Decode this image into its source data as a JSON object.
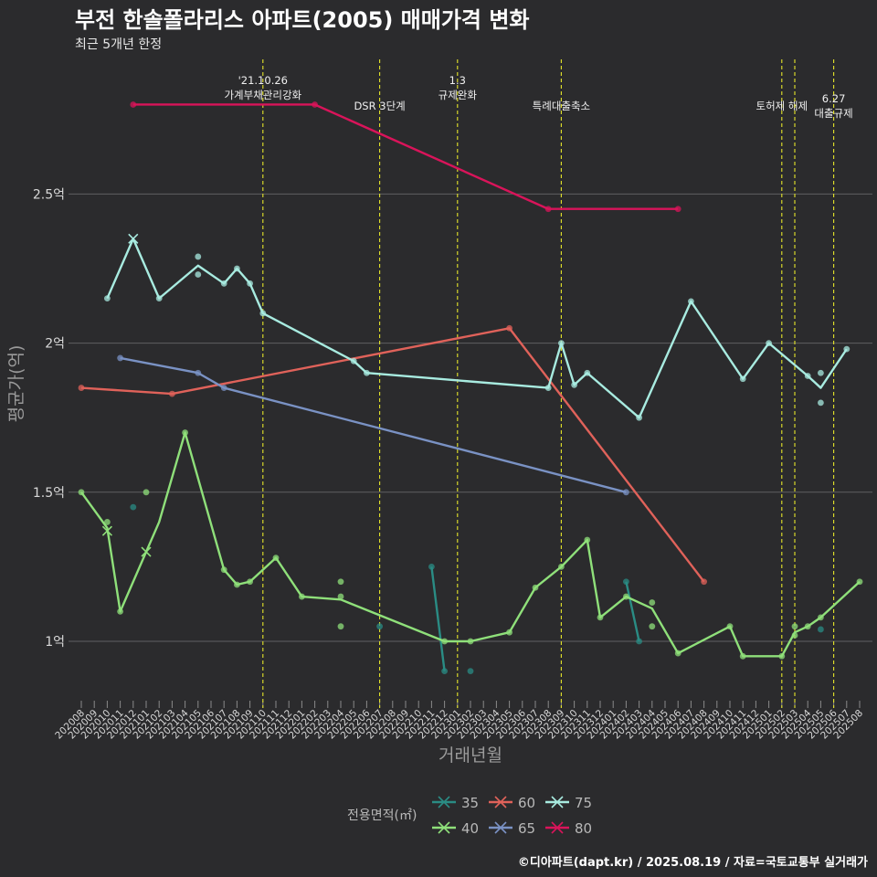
{
  "title": "부전 한솔폴라리스 아파트(2005) 매매가격 변화",
  "subtitle": "최근 5개년 한정",
  "caption": "©디아파트(dapt.kr) / 2025.08.19 / 자료=국토교통부 실거래가",
  "chart_data": {
    "type": "line",
    "xlabel": "거래년월",
    "ylabel": "평균가(억)",
    "legend_title": "전용면적(㎡)",
    "legend_position": "bottom",
    "grid": true,
    "ylim": [
      0.8,
      2.95
    ],
    "y_ticks": [
      1,
      1.5,
      2,
      2.5
    ],
    "y_tick_labels": [
      "1억",
      "1.5억",
      "2억",
      "2.5억"
    ],
    "x_categories": [
      "202008",
      "202009",
      "202010",
      "202011",
      "202012",
      "202101",
      "202102",
      "202103",
      "202104",
      "202105",
      "202106",
      "202107",
      "202108",
      "202109",
      "202110",
      "202111",
      "202112",
      "202201",
      "202202",
      "202203",
      "202204",
      "202205",
      "202206",
      "202207",
      "202208",
      "202209",
      "202210",
      "202211",
      "202212",
      "202301",
      "202302",
      "202303",
      "202304",
      "202305",
      "202306",
      "202307",
      "202308",
      "202309",
      "202310",
      "202311",
      "202312",
      "202401",
      "202402",
      "202403",
      "202404",
      "202405",
      "202406",
      "202407",
      "202408",
      "202409",
      "202410",
      "202411",
      "202412",
      "202501",
      "202502",
      "202503",
      "202504",
      "202505",
      "202506",
      "202507",
      "202508"
    ],
    "events": [
      {
        "x": "202110",
        "label": "'21.10.26\n가계부채관리강화",
        "label_row": 0
      },
      {
        "x": "202207",
        "label": "DSR 3단계",
        "label_row": 1
      },
      {
        "x": "202301",
        "label": "1.3\n규제완화",
        "label_row": 0
      },
      {
        "x": "202309",
        "label": "특례대출축소",
        "label_row": 1
      },
      {
        "x": "202502",
        "label": "토허제 해제",
        "label_row": 1
      },
      {
        "x": "202503",
        "label": "",
        "label_row": 1
      },
      {
        "x": "202506",
        "label": "6.27\n대출규제",
        "label_row": 2
      }
    ],
    "series": [
      {
        "name": "35",
        "color": "#2a8c84",
        "line": [
          [
            "202211",
            1.25
          ],
          [
            "202212",
            0.9
          ],
          null,
          [
            "202402",
            1.2
          ],
          [
            "202403",
            1.0
          ]
        ],
        "points": [
          [
            "202012",
            1.45
          ],
          [
            "202207",
            1.05
          ],
          [
            "202211",
            1.25
          ],
          [
            "202212",
            0.9
          ],
          [
            "202302",
            0.9
          ],
          [
            "202402",
            1.2
          ],
          [
            "202403",
            1.0
          ],
          [
            "202505",
            1.04
          ]
        ],
        "crosses": []
      },
      {
        "name": "40",
        "color": "#8fe07a",
        "line": [
          [
            "202008",
            1.5
          ],
          [
            "202010",
            1.38
          ],
          [
            "202011",
            1.1
          ],
          [
            "202102",
            1.4
          ],
          [
            "202104",
            1.7
          ],
          [
            "202107",
            1.24
          ],
          [
            "202108",
            1.19
          ],
          [
            "202109",
            1.2
          ],
          [
            "202111",
            1.28
          ],
          [
            "202201",
            1.15
          ],
          [
            "202204",
            1.14
          ],
          [
            "202212",
            1.0
          ],
          [
            "202302",
            1.0
          ],
          [
            "202305",
            1.03
          ],
          [
            "202307",
            1.18
          ],
          [
            "202309",
            1.25
          ],
          [
            "202311",
            1.34
          ],
          [
            "202312",
            1.08
          ],
          [
            "202402",
            1.15
          ],
          [
            "202404",
            1.11
          ],
          [
            "202406",
            0.96
          ],
          [
            "202410",
            1.05
          ],
          [
            "202411",
            0.95
          ],
          [
            "202502",
            0.95
          ],
          [
            "202503",
            1.03
          ],
          [
            "202504",
            1.05
          ],
          [
            "202505",
            1.08
          ],
          [
            "202508",
            1.2
          ]
        ],
        "points": [
          [
            "202008",
            1.5
          ],
          [
            "202010",
            1.4
          ],
          [
            "202011",
            1.1
          ],
          [
            "202101",
            1.5
          ],
          [
            "202104",
            1.7
          ],
          [
            "202107",
            1.24
          ],
          [
            "202108",
            1.19
          ],
          [
            "202109",
            1.2
          ],
          [
            "202111",
            1.28
          ],
          [
            "202201",
            1.15
          ],
          [
            "202204",
            1.2
          ],
          [
            "202204",
            1.15
          ],
          [
            "202204",
            1.05
          ],
          [
            "202212",
            1.0
          ],
          [
            "202302",
            1.0
          ],
          [
            "202305",
            1.03
          ],
          [
            "202307",
            1.18
          ],
          [
            "202309",
            1.25
          ],
          [
            "202311",
            1.34
          ],
          [
            "202312",
            1.08
          ],
          [
            "202402",
            1.15
          ],
          [
            "202404",
            1.05
          ],
          [
            "202404",
            1.13
          ],
          [
            "202406",
            0.96
          ],
          [
            "202410",
            1.05
          ],
          [
            "202411",
            0.95
          ],
          [
            "202502",
            0.95
          ],
          [
            "202503",
            1.02
          ],
          [
            "202503",
            1.05
          ],
          [
            "202504",
            1.05
          ],
          [
            "202505",
            1.08
          ],
          [
            "202508",
            1.2
          ]
        ],
        "crosses": [
          [
            "202010",
            1.37
          ],
          [
            "202101",
            1.3
          ]
        ]
      },
      {
        "name": "60",
        "color": "#e0625a",
        "line": [
          [
            "202008",
            1.85
          ],
          [
            "202103",
            1.83
          ],
          [
            "202305",
            2.05
          ],
          [
            "202408",
            1.2
          ]
        ],
        "points": [
          [
            "202008",
            1.85
          ],
          [
            "202103",
            1.83
          ],
          [
            "202305",
            2.05
          ],
          [
            "202408",
            1.2
          ]
        ],
        "crosses": []
      },
      {
        "name": "65",
        "color": "#7a92c4",
        "line": [
          [
            "202011",
            1.95
          ],
          [
            "202105",
            1.9
          ],
          [
            "202107",
            1.85
          ],
          [
            "202402",
            1.5
          ]
        ],
        "points": [
          [
            "202011",
            1.95
          ],
          [
            "202105",
            1.9
          ],
          [
            "202107",
            1.85
          ],
          [
            "202402",
            1.5
          ]
        ],
        "crosses": []
      },
      {
        "name": "75",
        "color": "#a8ebe0",
        "line": [
          [
            "202010",
            2.15
          ],
          [
            "202012",
            2.35
          ],
          [
            "202102",
            2.15
          ],
          [
            "202105",
            2.26
          ],
          [
            "202107",
            2.2
          ],
          [
            "202108",
            2.25
          ],
          [
            "202109",
            2.2
          ],
          [
            "202110",
            2.1
          ],
          [
            "202205",
            1.94
          ],
          [
            "202206",
            1.9
          ],
          [
            "202308",
            1.85
          ],
          [
            "202309",
            2.0
          ],
          [
            "202310",
            1.86
          ],
          [
            "202311",
            1.9
          ],
          [
            "202403",
            1.75
          ],
          [
            "202407",
            2.14
          ],
          [
            "202411",
            1.88
          ],
          [
            "202501",
            2.0
          ],
          [
            "202504",
            1.89
          ],
          [
            "202505",
            1.85
          ],
          [
            "202507",
            1.98
          ]
        ],
        "points": [
          [
            "202010",
            2.15
          ],
          [
            "202102",
            2.15
          ],
          [
            "202105",
            2.23
          ],
          [
            "202105",
            2.29
          ],
          [
            "202107",
            2.2
          ],
          [
            "202108",
            2.25
          ],
          [
            "202109",
            2.2
          ],
          [
            "202110",
            2.1
          ],
          [
            "202205",
            1.94
          ],
          [
            "202206",
            1.9
          ],
          [
            "202308",
            1.85
          ],
          [
            "202309",
            2.0
          ],
          [
            "202310",
            1.86
          ],
          [
            "202311",
            1.9
          ],
          [
            "202403",
            1.75
          ],
          [
            "202407",
            2.14
          ],
          [
            "202411",
            1.88
          ],
          [
            "202501",
            2.0
          ],
          [
            "202504",
            1.89
          ],
          [
            "202505",
            1.9
          ],
          [
            "202505",
            1.8
          ],
          [
            "202507",
            1.98
          ]
        ],
        "crosses": [
          [
            "202012",
            2.35
          ]
        ]
      },
      {
        "name": "80",
        "color": "#d9145a",
        "line": [
          [
            "202012",
            2.8
          ],
          [
            "202202",
            2.8
          ],
          [
            "202308",
            2.45
          ],
          [
            "202406",
            2.45
          ]
        ],
        "points": [
          [
            "202012",
            2.8
          ],
          [
            "202202",
            2.8
          ],
          [
            "202308",
            2.45
          ],
          [
            "202406",
            2.45
          ]
        ],
        "crosses": []
      }
    ]
  }
}
